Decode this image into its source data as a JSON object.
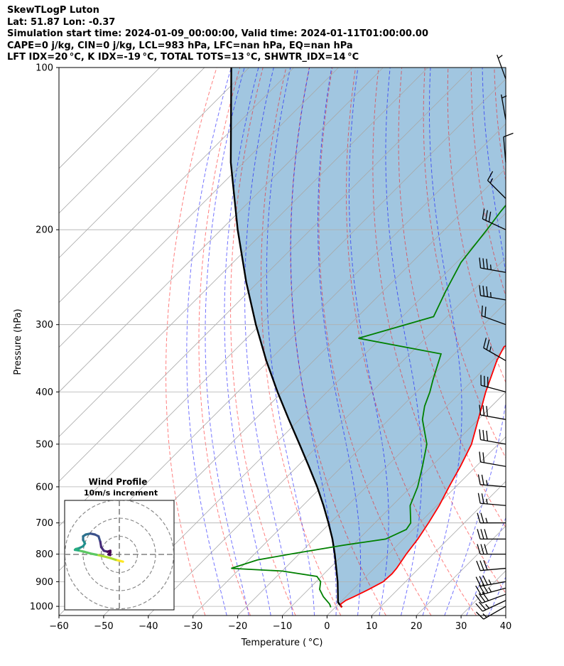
{
  "header": {
    "lines": [
      "SkewTLogP Luton",
      "Lat: 51.87   Lon: -0.37",
      "Simulation start time: 2024-01-09_00:00:00, Valid time: 2024-01-11T01:00:00.00",
      "CAPE=0 j/kg, CIN=0 j/kg, LCL=983 hPa, LFC=nan hPa, EQ=nan hPa",
      "LFT IDX=20 °C, K IDX=-19 °C, TOTAL TOTS=13 °C, SHWTR_IDX=14 °C"
    ]
  },
  "chart_data": {
    "type": "skewt-logp",
    "xlabel": "Temperature ( °C)",
    "ylabel": "Pressure (hPa)",
    "xlim": [
      -60,
      40
    ],
    "ylim": [
      1040,
      100
    ],
    "y_scale": "log",
    "x_ticks": [
      "−60",
      "−50",
      "−40",
      "−30",
      "−20",
      "−10",
      "0",
      "10",
      "20",
      "30",
      "40"
    ],
    "x_tick_values": [
      -60,
      -50,
      -40,
      -30,
      -20,
      -10,
      0,
      10,
      20,
      30,
      40
    ],
    "y_ticks": [
      "100",
      "200",
      "300",
      "400",
      "500",
      "600",
      "700",
      "800",
      "900",
      "1000"
    ],
    "y_tick_values": [
      100,
      200,
      300,
      400,
      500,
      600,
      700,
      800,
      900,
      1000
    ],
    "grid": true,
    "temperature": [
      [
        1004,
        1.5
      ],
      [
        1000,
        1.0
      ],
      [
        990,
        0.5
      ],
      [
        975,
        0.8
      ],
      [
        960,
        1.8
      ],
      [
        930,
        3.5
      ],
      [
        900,
        5.0
      ],
      [
        870,
        5.2
      ],
      [
        850,
        5.0
      ],
      [
        800,
        4.0
      ],
      [
        750,
        3.2
      ],
      [
        700,
        2.0
      ],
      [
        650,
        0.5
      ],
      [
        600,
        -1.5
      ],
      [
        550,
        -3.5
      ],
      [
        500,
        -6.0
      ],
      [
        450,
        -10.0
      ],
      [
        400,
        -14.5
      ],
      [
        350,
        -19.0
      ],
      [
        330,
        -20.5
      ],
      [
        320,
        -19.5
      ],
      [
        300,
        -19.5
      ],
      [
        280,
        -19.0
      ],
      [
        250,
        -17.5
      ],
      [
        220,
        -15.0
      ],
      [
        200,
        -13.0
      ],
      [
        180,
        -12.0
      ],
      [
        160,
        -10.5
      ],
      [
        145,
        -9.0
      ],
      [
        130,
        -8.5
      ],
      [
        115,
        -8.5
      ],
      [
        105,
        -8.0
      ],
      [
        100,
        -7.5
      ]
    ],
    "dewpoint": [
      [
        1004,
        -1.0
      ],
      [
        990,
        -2.0
      ],
      [
        960,
        -5.0
      ],
      [
        930,
        -7.5
      ],
      [
        900,
        -9.0
      ],
      [
        880,
        -11.0
      ],
      [
        860,
        -20.0
      ],
      [
        850,
        -32.0
      ],
      [
        820,
        -28.0
      ],
      [
        800,
        -22.0
      ],
      [
        770,
        -12.0
      ],
      [
        750,
        -4.0
      ],
      [
        720,
        -1.5
      ],
      [
        700,
        -2.0
      ],
      [
        650,
        -6.0
      ],
      [
        600,
        -8.5
      ],
      [
        550,
        -12.0
      ],
      [
        500,
        -16.0
      ],
      [
        450,
        -22.5
      ],
      [
        425,
        -25.0
      ],
      [
        400,
        -27.0
      ],
      [
        380,
        -29.0
      ],
      [
        340,
        -33.0
      ],
      [
        318,
        -55.0
      ],
      [
        290,
        -43.0
      ],
      [
        260,
        -46.0
      ],
      [
        230,
        -49.0
      ],
      [
        200,
        -50.5
      ],
      [
        185,
        -51.5
      ],
      [
        175,
        -52.0
      ],
      [
        160,
        -52.5
      ],
      [
        140,
        -50.0
      ],
      [
        120,
        -48.0
      ],
      [
        100,
        -47.0
      ]
    ],
    "parcel": [
      [
        1004,
        1.5
      ],
      [
        983,
        -0.5
      ],
      [
        950,
        -2.3
      ],
      [
        900,
        -5.2
      ],
      [
        850,
        -8.5
      ],
      [
        800,
        -12.0
      ],
      [
        750,
        -15.9
      ],
      [
        700,
        -20.4
      ],
      [
        650,
        -25.4
      ],
      [
        600,
        -31.0
      ],
      [
        550,
        -37.4
      ],
      [
        500,
        -44.5
      ],
      [
        450,
        -52.4
      ],
      [
        400,
        -61.1
      ],
      [
        350,
        -70.6
      ],
      [
        300,
        -81.0
      ],
      [
        250,
        -92.7
      ],
      [
        200,
        -106.3
      ],
      [
        150,
        -122.9
      ],
      [
        100,
        -144.0
      ]
    ],
    "barbs": [
      {
        "p": 1000,
        "dir": 240,
        "spd": 15
      },
      {
        "p": 975,
        "dir": 245,
        "spd": 25
      },
      {
        "p": 950,
        "dir": 250,
        "spd": 30
      },
      {
        "p": 925,
        "dir": 255,
        "spd": 35
      },
      {
        "p": 900,
        "dir": 260,
        "spd": 35
      },
      {
        "p": 850,
        "dir": 265,
        "spd": 30
      },
      {
        "p": 800,
        "dir": 270,
        "spd": 30
      },
      {
        "p": 750,
        "dir": 270,
        "spd": 30
      },
      {
        "p": 700,
        "dir": 270,
        "spd": 25
      },
      {
        "p": 650,
        "dir": 275,
        "spd": 25
      },
      {
        "p": 600,
        "dir": 275,
        "spd": 25
      },
      {
        "p": 550,
        "dir": 280,
        "spd": 20
      },
      {
        "p": 500,
        "dir": 280,
        "spd": 30
      },
      {
        "p": 450,
        "dir": 280,
        "spd": 30
      },
      {
        "p": 400,
        "dir": 285,
        "spd": 30
      },
      {
        "p": 350,
        "dir": 300,
        "spd": 25
      },
      {
        "p": 300,
        "dir": 290,
        "spd": 20
      },
      {
        "p": 270,
        "dir": 280,
        "spd": 35
      },
      {
        "p": 240,
        "dir": 280,
        "spd": 35
      },
      {
        "p": 200,
        "dir": 295,
        "spd": 30
      },
      {
        "p": 175,
        "dir": 315,
        "spd": 15
      },
      {
        "p": 150,
        "dir": 355,
        "spd": 10
      },
      {
        "p": 125,
        "dir": 350,
        "spd": 5
      },
      {
        "p": 105,
        "dir": 340,
        "spd": 5
      }
    ],
    "inset": {
      "title": "Wind Profile",
      "subtitle": "10m/s increment",
      "rings_ms": [
        10,
        20,
        30
      ],
      "hodograph": [
        [
          2.0,
          -4.0
        ],
        [
          -2.0,
          -3.0
        ],
        [
          -5.0,
          -2.0
        ],
        [
          -9.0,
          -1.0
        ],
        [
          -12.5,
          -0.2
        ],
        [
          -16.0,
          0.5
        ],
        [
          -19.5,
          1.5
        ],
        [
          -22.5,
          2.2
        ],
        [
          -24.5,
          2.5
        ],
        [
          -24.0,
          3.0
        ],
        [
          -22.0,
          3.5
        ],
        [
          -20.0,
          4.5
        ],
        [
          -19.0,
          6.0
        ],
        [
          -20.0,
          8.0
        ],
        [
          -20.0,
          10.0
        ],
        [
          -18.5,
          11.0
        ],
        [
          -16.0,
          11.5
        ],
        [
          -13.5,
          11.0
        ],
        [
          -11.5,
          10.0
        ],
        [
          -10.5,
          7.0
        ],
        [
          -10.0,
          4.0
        ],
        [
          -8.5,
          2.0
        ],
        [
          -6.5,
          1.5
        ],
        [
          -5.0,
          2.0
        ],
        [
          -5.0,
          1.0
        ],
        [
          -6.0,
          0.0
        ],
        [
          -5.0,
          -0.3
        ]
      ]
    }
  }
}
